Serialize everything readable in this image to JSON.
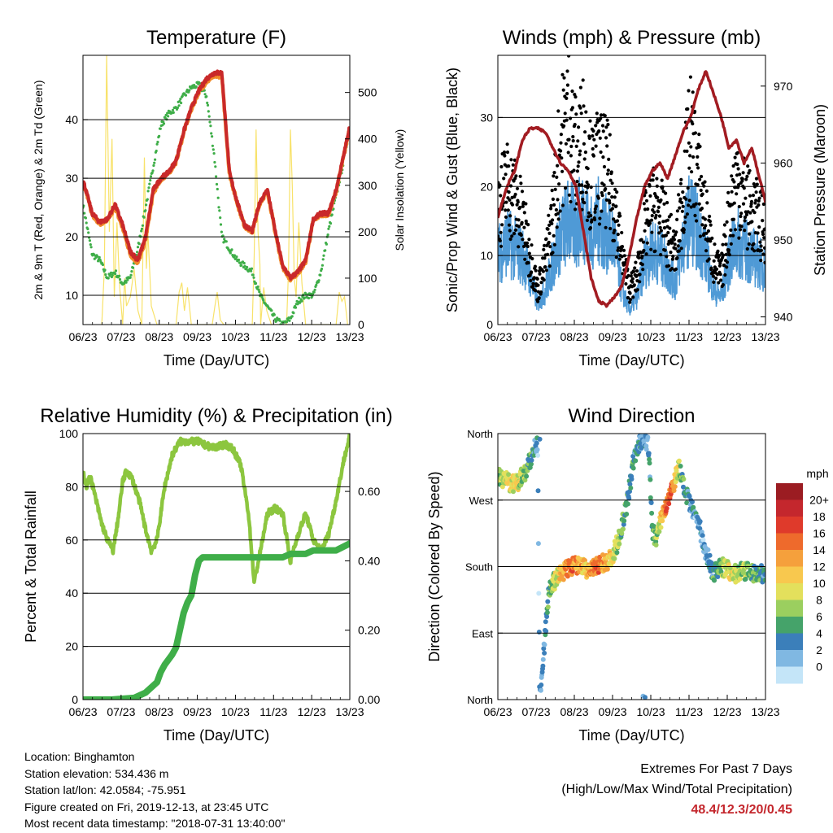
{
  "info": {
    "location": "Location: Binghamton",
    "elevation": "Station elevation: 534.436 m",
    "latlon": "Station lat/lon: 42.0584; -75.951",
    "created": "Figure created on Fri, 2019-12-13, at 23:45 UTC",
    "recent": "Most recent data timestamp: \"2018-07-31 13:40:00\""
  },
  "extremes": {
    "title": "Extremes For Past 7 Days",
    "subtitle": "(High/Low/Max Wind/Total Precipitation)",
    "values": "48.4/12.3/20/0.45",
    "color": "#c4272d"
  },
  "colors": {
    "red": "#c9292a",
    "orange": "#f08a2a",
    "green": "#3fae49",
    "yellow": "#f8e26a",
    "blue": "#4f9ad6",
    "black": "#000000",
    "maroon": "#a21c22",
    "rh": "#8cc63f",
    "precip": "#3fae49"
  },
  "chart_data": [
    {
      "type": "line",
      "title": "Temperature (F)",
      "xlabel": "Time (Day/UTC)",
      "ylabel": "2m & 9m T (Red, Orange) & 2m Td (Green)",
      "ylabel_right": "Solar Insolation (Yellow)",
      "x_ticks": [
        "06/23",
        "07/23",
        "08/23",
        "09/23",
        "10/23",
        "11/23",
        "12/23",
        "13/23"
      ],
      "xlim": [
        6.958,
        13.958
      ],
      "ylim": [
        5,
        51
      ],
      "y_ticks": [
        10,
        20,
        30,
        40
      ],
      "ylim_right": [
        0,
        580
      ],
      "y_ticks_right": [
        0,
        100,
        200,
        300,
        400,
        500
      ],
      "grid": "horizontal",
      "series": [
        {
          "role": "2m T",
          "color": "red",
          "axis": "left",
          "x": [
            6.958,
            7.2,
            7.4,
            7.6,
            7.8,
            8.0,
            8.2,
            8.4,
            8.6,
            8.8,
            9.0,
            9.2,
            9.4,
            9.6,
            9.8,
            10.0,
            10.2,
            10.4,
            10.6,
            10.8,
            11.0,
            11.2,
            11.4,
            11.6,
            11.8,
            12.0,
            12.2,
            12.4,
            12.6,
            12.8,
            13.0,
            13.2,
            13.4,
            13.6,
            13.8,
            13.958
          ],
          "y": [
            29.8,
            24,
            22.5,
            23,
            25.5,
            22,
            17.5,
            16,
            20,
            28,
            30,
            31,
            33,
            38,
            42,
            45,
            47,
            48,
            48,
            31,
            26,
            22,
            21,
            26,
            28,
            21,
            15,
            13,
            14,
            16,
            23,
            24,
            24,
            28,
            34,
            39
          ]
        },
        {
          "role": "9m T",
          "color": "orange",
          "axis": "left",
          "x": [
            6.958,
            7.2,
            7.4,
            7.6,
            7.8,
            8.0,
            8.2,
            8.4,
            8.6,
            8.8,
            9.0,
            9.2,
            9.4,
            9.6,
            9.8,
            10.0,
            10.2,
            10.4,
            10.6,
            10.8,
            11.0,
            11.2,
            11.4,
            11.6,
            11.8,
            12.0,
            12.2,
            12.4,
            12.6,
            12.8,
            13.0,
            13.2,
            13.4,
            13.6,
            13.8,
            13.958
          ],
          "y": [
            29.5,
            23.8,
            22.3,
            22.8,
            25,
            21.5,
            17,
            15.5,
            19.5,
            27.5,
            29.8,
            30.8,
            32.8,
            37.8,
            41.8,
            44.8,
            46.5,
            47.5,
            47.5,
            30.8,
            25.8,
            21.8,
            20.8,
            25.8,
            27.8,
            20.8,
            14.8,
            12.8,
            13.8,
            15.8,
            22.8,
            23.8,
            23.8,
            27.8,
            33.8,
            38.8
          ]
        },
        {
          "role": "2m Td",
          "color": "green",
          "axis": "left",
          "x": [
            6.958,
            7.2,
            7.4,
            7.6,
            7.8,
            8.0,
            8.2,
            8.4,
            8.6,
            8.8,
            9.0,
            9.2,
            9.4,
            9.6,
            9.8,
            10.0,
            10.2,
            10.4,
            10.6,
            10.8,
            11.0,
            11.2,
            11.4,
            11.6,
            11.8,
            12.0,
            12.2,
            12.4,
            12.6,
            12.8,
            13.0,
            13.2,
            13.4,
            13.6,
            13.8,
            13.958
          ],
          "y": [
            25.5,
            17,
            16,
            13,
            14,
            12,
            13,
            18,
            25,
            32,
            39,
            41,
            42,
            44,
            45.5,
            46,
            44,
            34,
            20,
            18,
            16,
            15,
            14,
            10,
            8,
            6,
            5,
            6,
            9,
            10,
            10,
            14,
            21,
            27,
            33,
            39
          ]
        },
        {
          "role": "Solar Insolation",
          "color": "yellow",
          "axis": "right",
          "x": [
            7.45,
            7.52,
            7.58,
            7.65,
            7.72,
            7.78,
            7.85,
            7.92,
            8.0,
            8.05,
            8.1,
            8.2,
            8.3,
            8.4,
            8.5,
            8.57,
            8.62,
            8.66,
            8.75,
            8.9,
            9.4,
            9.48,
            9.55,
            9.62,
            9.7,
            9.8,
            10.35,
            10.42,
            10.48,
            10.56,
            10.65,
            11.4,
            11.45,
            11.5,
            11.55,
            11.6,
            11.62,
            11.7,
            11.78,
            11.9,
            12.3,
            12.35,
            12.4,
            12.45,
            12.5,
            12.55,
            12.62,
            12.7,
            12.8,
            13.6,
            13.68,
            13.75,
            13.82,
            13.9
          ],
          "y": [
            0,
            120,
            580,
            200,
            400,
            60,
            220,
            80,
            0,
            100,
            40,
            60,
            120,
            30,
            0,
            360,
            120,
            200,
            40,
            0,
            0,
            70,
            90,
            30,
            80,
            0,
            0,
            40,
            70,
            10,
            0,
            0,
            150,
            420,
            200,
            130,
            0,
            80,
            30,
            0,
            0,
            120,
            420,
            300,
            100,
            60,
            220,
            90,
            0,
            0,
            70,
            50,
            60,
            0
          ]
        }
      ]
    },
    {
      "type": "line",
      "title": "Winds (mph) & Pressure (mb)",
      "xlabel": "Time (Day/UTC)",
      "ylabel": "Sonic/Prop Wind & Gust (Blue, Black)",
      "ylabel_right": "Station Pressure (Maroon)",
      "x_ticks": [
        "06/23",
        "07/23",
        "08/23",
        "09/23",
        "10/23",
        "11/23",
        "12/23",
        "13/23"
      ],
      "xlim": [
        6.958,
        13.958
      ],
      "ylim": [
        0,
        39
      ],
      "y_ticks": [
        0,
        10,
        20,
        30
      ],
      "ylim_right": [
        939,
        974
      ],
      "y_ticks_right": [
        940,
        950,
        960,
        970
      ],
      "grid": "horizontal",
      "series": [
        {
          "role": "Sonic/Prop Wind",
          "color": "blue",
          "axis": "left",
          "x": [
            6.958,
            7.2,
            7.4,
            7.6,
            7.8,
            8.0,
            8.2,
            8.4,
            8.6,
            8.8,
            9.0,
            9.2,
            9.4,
            9.6,
            9.8,
            10.0,
            10.2,
            10.4,
            10.6,
            10.8,
            11.0,
            11.2,
            11.4,
            11.6,
            11.8,
            12.0,
            12.2,
            12.4,
            12.6,
            12.8,
            13.0,
            13.2,
            13.4,
            13.6,
            13.8,
            13.958
          ],
          "y": [
            10,
            12,
            11,
            10,
            7,
            3,
            5,
            9,
            13,
            15,
            14,
            16,
            13,
            15,
            13,
            12,
            5,
            2,
            4,
            9,
            11,
            10,
            8,
            6,
            12,
            16,
            13,
            10,
            5,
            4,
            9,
            12,
            11,
            10,
            9,
            8
          ]
        },
        {
          "role": "Gust",
          "color": "black",
          "axis": "left",
          "x": [
            6.958,
            7.2,
            7.4,
            7.6,
            7.8,
            8.0,
            8.2,
            8.4,
            8.6,
            8.8,
            9.0,
            9.2,
            9.4,
            9.6,
            9.8,
            10.0,
            10.2,
            10.4,
            10.6,
            10.8,
            11.0,
            11.2,
            11.4,
            11.6,
            11.8,
            12.0,
            12.2,
            12.4,
            12.6,
            12.8,
            13.0,
            13.2,
            13.4,
            13.6,
            13.8,
            13.958
          ],
          "y": [
            17,
            20,
            18,
            15,
            10,
            5,
            9,
            16,
            26,
            30,
            24,
            27,
            21,
            23,
            22,
            18,
            10,
            5,
            7,
            14,
            17,
            16,
            13,
            10,
            19,
            27,
            21,
            15,
            9,
            7,
            15,
            21,
            18,
            16,
            15,
            13
          ]
        },
        {
          "role": "Station Pressure",
          "color": "maroon",
          "axis": "right",
          "x": [
            6.958,
            7.2,
            7.4,
            7.6,
            7.8,
            8.0,
            8.2,
            8.4,
            8.6,
            8.8,
            9.0,
            9.2,
            9.4,
            9.6,
            9.8,
            10.0,
            10.2,
            10.4,
            10.6,
            10.8,
            11.0,
            11.2,
            11.4,
            11.6,
            11.8,
            12.0,
            12.2,
            12.4,
            12.6,
            12.8,
            13.0,
            13.2,
            13.4,
            13.6,
            13.8,
            13.958
          ],
          "y": [
            953,
            957,
            959,
            963,
            964.5,
            964.5,
            964,
            962,
            960,
            959,
            957,
            951,
            945,
            942,
            941.5,
            942.5,
            944,
            948,
            953,
            957,
            959,
            960,
            958,
            961,
            964,
            966,
            969.5,
            972,
            969,
            966,
            962,
            963,
            960,
            962,
            958,
            955
          ]
        }
      ]
    },
    {
      "type": "line",
      "title": "Relative Humidity (%) & Precipitation (in)",
      "xlabel": "Time (Day/UTC)",
      "ylabel": "Percent & Total Rainfall",
      "x_ticks": [
        "06/23",
        "07/23",
        "08/23",
        "09/23",
        "10/23",
        "11/23",
        "12/23",
        "13/23"
      ],
      "xlim": [
        6.958,
        13.958
      ],
      "ylim": [
        0,
        100
      ],
      "y_ticks": [
        0,
        20,
        40,
        60,
        80,
        100
      ],
      "ylim_right": [
        0,
        0.7667
      ],
      "y_ticks_right": [
        "0.00",
        "0.20",
        "0.40",
        "0.60"
      ],
      "grid": "horizontal",
      "series": [
        {
          "role": "Relative Humidity",
          "color": "rh",
          "axis": "left",
          "x": [
            6.958,
            7.05,
            7.15,
            7.25,
            7.35,
            7.45,
            7.6,
            7.75,
            7.9,
            8.0,
            8.1,
            8.25,
            8.45,
            8.6,
            8.75,
            8.9,
            9.1,
            9.3,
            9.5,
            9.7,
            9.9,
            10.0,
            10.1,
            10.3,
            10.5,
            10.7,
            10.9,
            11.1,
            11.3,
            11.45,
            11.6,
            11.8,
            12.0,
            12.2,
            12.4,
            12.6,
            12.8,
            13.0,
            13.2,
            13.4,
            13.6,
            13.8,
            13.958
          ],
          "y": [
            86,
            80,
            84,
            78,
            72,
            66,
            60,
            56,
            70,
            82,
            86,
            83,
            74,
            64,
            56,
            60,
            80,
            92,
            97,
            97,
            97,
            97,
            96,
            95,
            95,
            96,
            94,
            88,
            70,
            44,
            55,
            70,
            72,
            70,
            52,
            62,
            70,
            60,
            56,
            62,
            75,
            90,
            99
          ]
        },
        {
          "role": "Total Precipitation",
          "color": "precip",
          "axis": "right",
          "x": [
            6.958,
            7.7,
            8.3,
            8.6,
            8.9,
            9.0,
            9.1,
            9.3,
            9.4,
            9.5,
            9.6,
            9.7,
            9.8,
            9.9,
            10.0,
            10.1,
            10.3,
            10.6,
            11.0,
            11.4,
            11.8,
            12.2,
            12.4,
            12.6,
            12.8,
            13.0,
            13.2,
            13.4,
            13.6,
            13.958
          ],
          "y": [
            0,
            0,
            0.005,
            0.02,
            0.05,
            0.08,
            0.1,
            0.13,
            0.15,
            0.2,
            0.25,
            0.28,
            0.3,
            0.36,
            0.4,
            0.41,
            0.41,
            0.41,
            0.41,
            0.41,
            0.41,
            0.41,
            0.42,
            0.42,
            0.42,
            0.43,
            0.43,
            0.43,
            0.43,
            0.45
          ]
        }
      ]
    },
    {
      "type": "scatter",
      "title": "Wind Direction",
      "xlabel": "Time (Day/UTC)",
      "ylabel": "Direction (Colored By Speed)",
      "x_ticks": [
        "06/23",
        "07/23",
        "08/23",
        "09/23",
        "10/23",
        "11/23",
        "12/23",
        "13/23"
      ],
      "xlim": [
        6.958,
        13.958
      ],
      "ylim": [
        0,
        360
      ],
      "y_ticks": [
        "North",
        "East",
        "South",
        "West",
        "North"
      ],
      "y_tick_values": [
        0,
        90,
        180,
        270,
        360
      ],
      "colorbar": {
        "title": "mph",
        "labels": [
          "20+",
          "18",
          "16",
          "14",
          "12",
          "10",
          "8",
          "6",
          "4",
          "2",
          "0"
        ],
        "colors": [
          "#9b1c22",
          "#c4272d",
          "#df3a2b",
          "#ee6a2c",
          "#f5a03c",
          "#f8c84e",
          "#e3e05c",
          "#9bcf5f",
          "#45a36a",
          "#3b7fba",
          "#80b8e2",
          "#c4e5f8"
        ]
      },
      "series": [
        {
          "x": [
            6.958,
            7.2,
            7.4,
            7.55,
            7.7,
            7.85,
            8.0,
            8.05,
            8.3,
            8.5,
            8.7,
            8.9,
            9.1,
            9.3,
            9.5,
            9.7,
            9.9,
            10.0,
            10.1,
            10.3,
            10.5,
            10.6,
            10.7,
            10.8,
            10.9,
            11.0,
            11.1,
            11.2,
            11.3,
            11.4,
            11.5,
            11.6,
            11.7,
            11.8,
            12.0,
            12.2,
            12.4,
            12.6,
            12.8,
            13.0,
            13.2,
            13.4,
            13.6,
            13.8,
            13.958
          ],
          "y": [
            305,
            295,
            290,
            300,
            310,
            330,
            350,
            0,
            150,
            165,
            175,
            180,
            182,
            175,
            178,
            185,
            190,
            200,
            215,
            255,
            320,
            340,
            350,
            355,
            340,
            230,
            215,
            240,
            255,
            270,
            285,
            300,
            315,
            290,
            260,
            240,
            200,
            170,
            180,
            175,
            170,
            175,
            170,
            172,
            170
          ],
          "speed": [
            8,
            10,
            11,
            9,
            7,
            5,
            3,
            2,
            6,
            10,
            14,
            15,
            13,
            12,
            16,
            14,
            12,
            9,
            8,
            6,
            5,
            4,
            4,
            3,
            4,
            5,
            8,
            10,
            14,
            17,
            16,
            12,
            9,
            6,
            4,
            3,
            3,
            5,
            7,
            10,
            9,
            8,
            7,
            6,
            5
          ]
        }
      ]
    }
  ]
}
